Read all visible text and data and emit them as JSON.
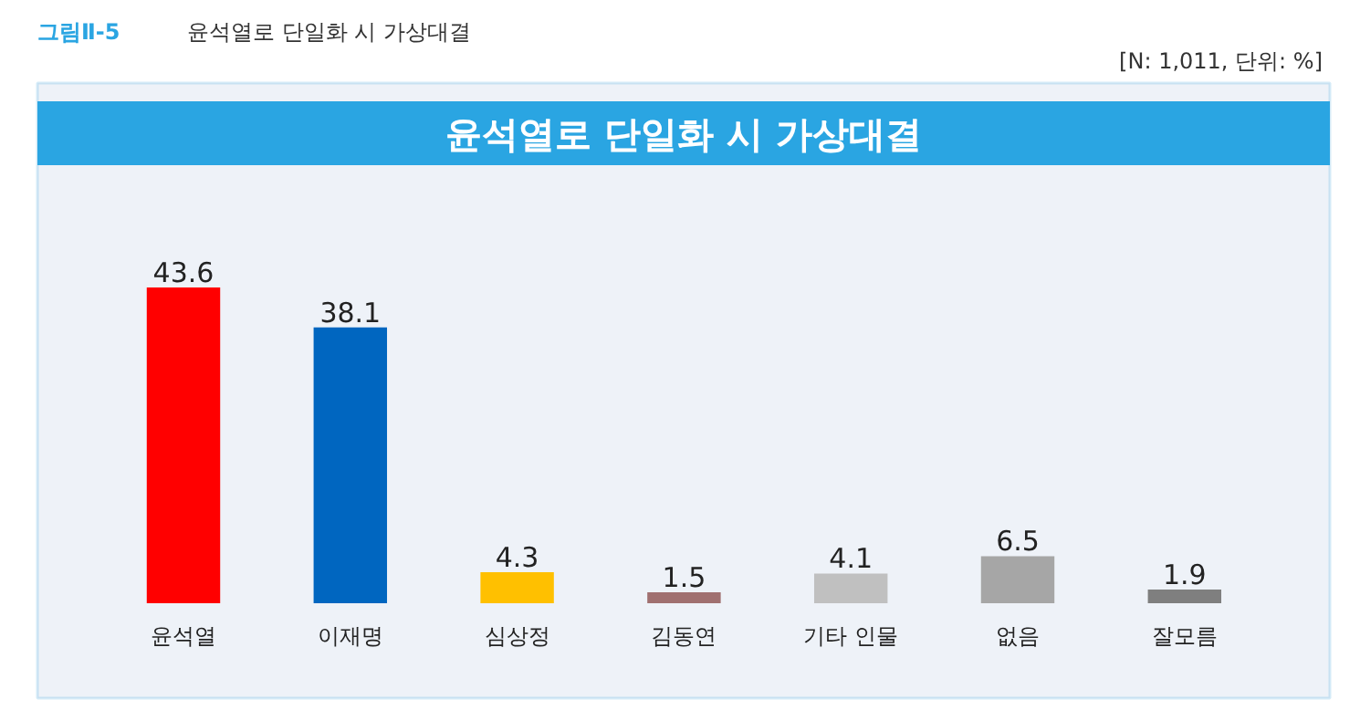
{
  "chart_data": {
    "type": "bar",
    "title": "윤석열로 단일화 시 가상대결",
    "subtitle": "윤석열로 단일화 시 가상대결",
    "annotations": [
      "그림Ⅱ-5",
      "[N: 1,011, 단위: %]"
    ],
    "categories": [
      "윤석열",
      "이재명",
      "심상정",
      "김동연",
      "기타 인물",
      "없음",
      "잘모름"
    ],
    "values": [
      43.6,
      38.1,
      4.3,
      1.5,
      4.1,
      6.5,
      1.9
    ],
    "colors": [
      "#ff0000",
      "#0066c0",
      "#ffc000",
      "#a07070",
      "#c0c0c0",
      "#a6a6a6",
      "#7f7f7f"
    ],
    "data_labels": true,
    "grid": false
  }
}
